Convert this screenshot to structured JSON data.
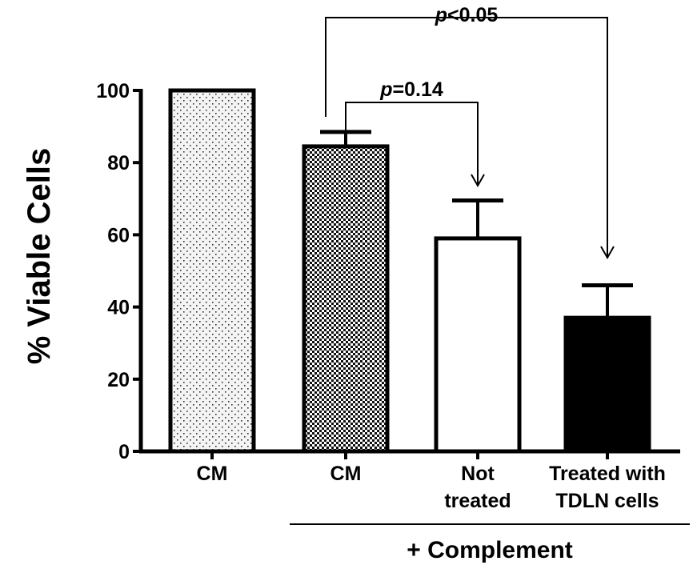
{
  "chart_data": {
    "type": "bar",
    "ylabel": "% Viable Cells",
    "ylim": [
      0,
      100
    ],
    "yticks": [
      0,
      20,
      40,
      60,
      80,
      100
    ],
    "bars": [
      {
        "label_lines": [
          "CM"
        ],
        "value": 100,
        "error": 0,
        "pattern": "light-dots"
      },
      {
        "label_lines": [
          "CM"
        ],
        "value": 84.5,
        "error": 4,
        "pattern": "checker"
      },
      {
        "label_lines": [
          "Not",
          "treated"
        ],
        "value": 59,
        "error": 10.5,
        "pattern": "white"
      },
      {
        "label_lines": [
          "Treated with",
          "TDLN cells"
        ],
        "value": 37,
        "error": 9,
        "pattern": "black"
      }
    ],
    "group_label": "+ Complement",
    "group_bars": [
      1,
      2,
      3
    ],
    "comparisons": [
      {
        "from": 1,
        "to": 3,
        "p_italic": "p",
        "p_rest": "<0.05"
      },
      {
        "from": 1,
        "to": 2,
        "p_italic": "p",
        "p_rest": "=0.14"
      }
    ],
    "colors": {
      "axis": "#000000",
      "black_bar": "#000000",
      "white_bar": "#ffffff"
    }
  }
}
